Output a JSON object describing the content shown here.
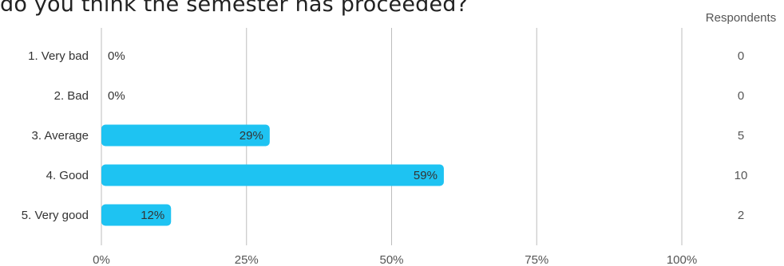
{
  "question": "do you think the semester has proceeded?",
  "colors": {
    "bar": "#1ec3f2",
    "grid": "#bdbdbd",
    "text": "#333333"
  },
  "chart_data": {
    "type": "bar",
    "orientation": "horizontal",
    "title": "do you think the semester has proceeded?",
    "categories": [
      "1. Very bad",
      "2. Bad",
      "3. Average",
      "4. Good",
      "5. Very good"
    ],
    "values": [
      0,
      0,
      29,
      59,
      12
    ],
    "value_labels": [
      "0%",
      "0%",
      "29%",
      "59%",
      "12%"
    ],
    "respondents_header": "Respondents",
    "respondents": [
      "0",
      "0",
      "5",
      "10",
      "2"
    ],
    "xlim": [
      0,
      100
    ],
    "x_ticks": [
      0,
      25,
      50,
      75,
      100
    ],
    "x_tick_labels": [
      "0%",
      "25%",
      "50%",
      "75%",
      "100%"
    ],
    "grid": true
  }
}
